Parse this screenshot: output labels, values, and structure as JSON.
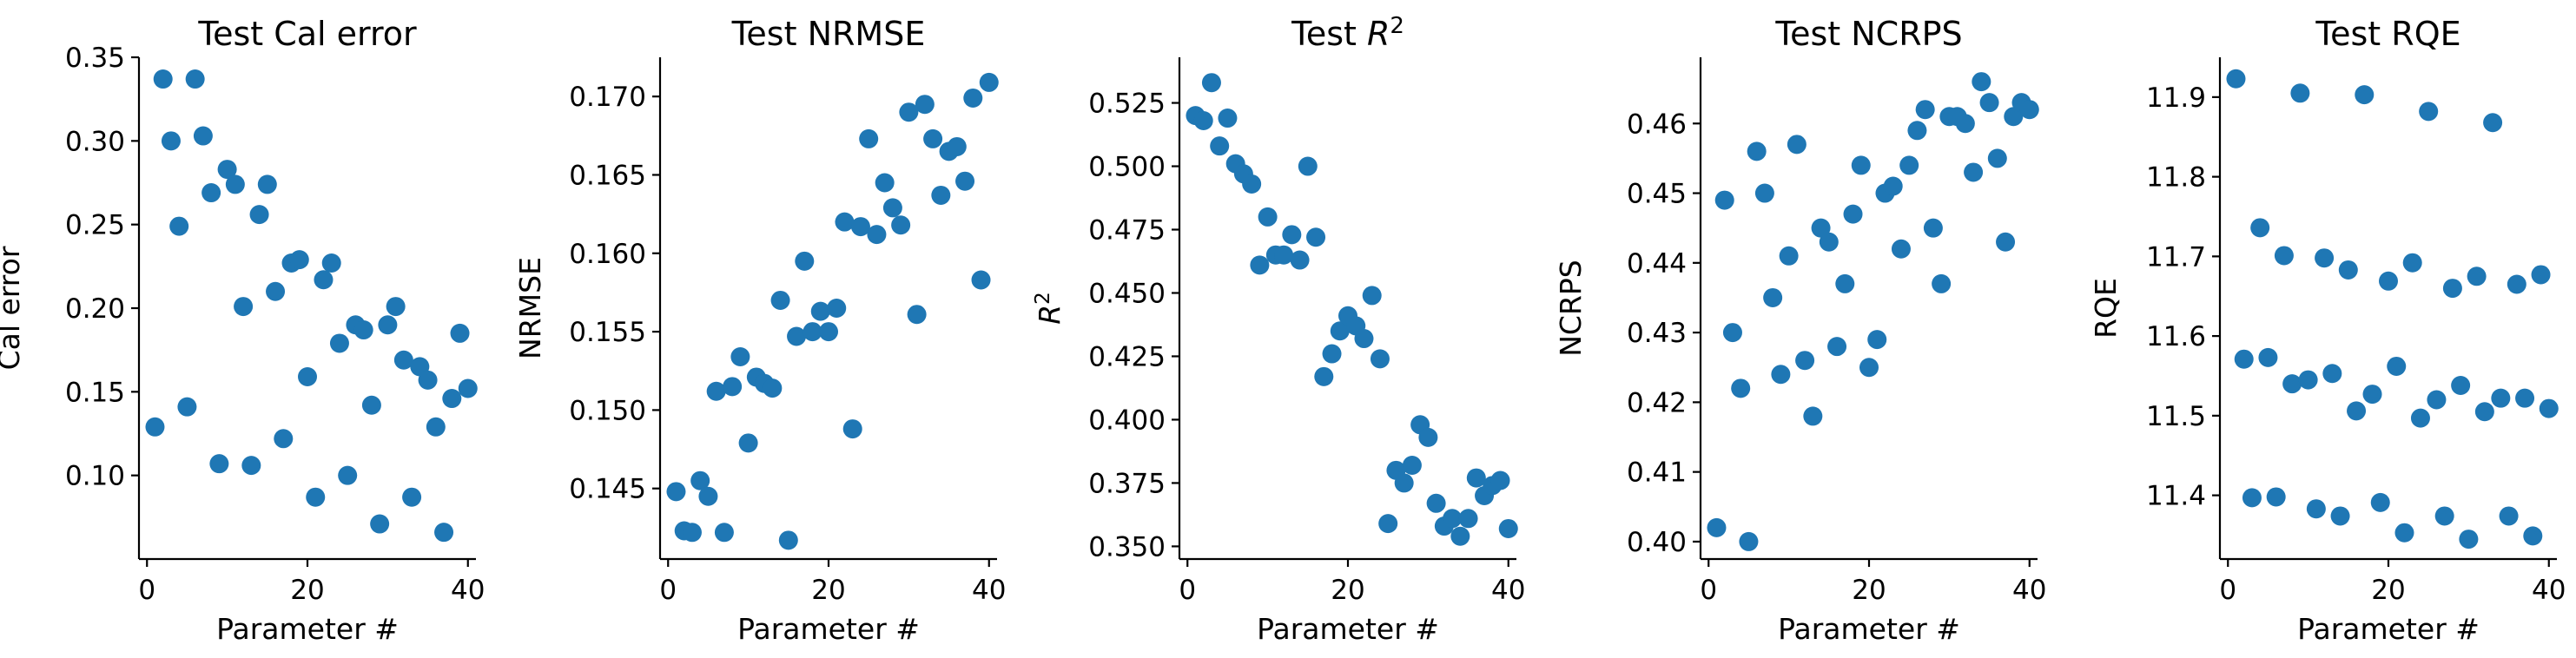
{
  "chart_data": [
    {
      "type": "scatter",
      "title": "Test Cal error",
      "xlabel": "Parameter #",
      "ylabel": "Cal error",
      "xlim": [
        -1,
        41
      ],
      "ylim": [
        0.05,
        0.35
      ],
      "xticks": [
        0,
        20,
        40
      ],
      "yticks": [
        0.1,
        0.15,
        0.2,
        0.25,
        0.3,
        0.35
      ],
      "ytick_labels": [
        "0.10",
        "0.15",
        "0.20",
        "0.25",
        "0.30",
        "0.35"
      ],
      "color": "#1f77b4",
      "x": [
        1,
        2,
        3,
        4,
        5,
        6,
        7,
        8,
        9,
        10,
        11,
        12,
        13,
        14,
        15,
        16,
        17,
        18,
        19,
        20,
        21,
        22,
        23,
        24,
        25,
        26,
        27,
        28,
        29,
        30,
        31,
        32,
        33,
        34,
        35,
        36,
        37,
        38,
        39,
        40
      ],
      "y": [
        0.129,
        0.337,
        0.3,
        0.249,
        0.141,
        0.337,
        0.303,
        0.269,
        0.107,
        0.283,
        0.274,
        0.201,
        0.106,
        0.256,
        0.274,
        0.21,
        0.122,
        0.227,
        0.229,
        0.159,
        0.087,
        0.217,
        0.227,
        0.179,
        0.1,
        0.19,
        0.187,
        0.142,
        0.071,
        0.19,
        0.201,
        0.169,
        0.087,
        0.165,
        0.157,
        0.129,
        0.066,
        0.146,
        0.185,
        0.152
      ]
    },
    {
      "type": "scatter",
      "title": "Test NRMSE",
      "xlabel": "Parameter #",
      "ylabel": "NRMSE",
      "xlim": [
        -1,
        41
      ],
      "ylim": [
        0.1405,
        0.1725
      ],
      "xticks": [
        0,
        20,
        40
      ],
      "yticks": [
        0.145,
        0.15,
        0.155,
        0.16,
        0.165,
        0.17
      ],
      "ytick_labels": [
        "0.145",
        "0.150",
        "0.155",
        "0.160",
        "0.165",
        "0.170"
      ],
      "color": "#1f77b4",
      "x": [
        1,
        2,
        3,
        4,
        5,
        6,
        7,
        8,
        9,
        10,
        11,
        12,
        13,
        14,
        15,
        16,
        17,
        18,
        19,
        20,
        21,
        22,
        23,
        24,
        25,
        26,
        27,
        28,
        29,
        30,
        31,
        32,
        33,
        34,
        35,
        36,
        37,
        38,
        39,
        40
      ],
      "y": [
        0.1448,
        0.1423,
        0.1422,
        0.1455,
        0.1445,
        0.1512,
        0.1422,
        0.1515,
        0.1534,
        0.1479,
        0.1521,
        0.1517,
        0.1514,
        0.157,
        0.1417,
        0.1547,
        0.1595,
        0.155,
        0.1563,
        0.155,
        0.1565,
        0.162,
        0.1488,
        0.1617,
        0.1673,
        0.1612,
        0.1645,
        0.1629,
        0.1618,
        0.169,
        0.1561,
        0.1695,
        0.1673,
        0.1637,
        0.1665,
        0.1668,
        0.1646,
        0.1699,
        0.1583,
        0.1709
      ]
    },
    {
      "type": "scatter",
      "title": "Test R²",
      "title_base": "Test ",
      "title_sym": "R",
      "title_sup": "2",
      "xlabel": "Parameter #",
      "ylabel_sym": "R",
      "ylabel_sup": "2",
      "xlim": [
        -1,
        41
      ],
      "ylim": [
        0.345,
        0.543
      ],
      "xticks": [
        0,
        20,
        40
      ],
      "yticks": [
        0.35,
        0.375,
        0.4,
        0.425,
        0.45,
        0.475,
        0.5,
        0.525
      ],
      "ytick_labels": [
        "0.350",
        "0.375",
        "0.400",
        "0.425",
        "0.450",
        "0.475",
        "0.500",
        "0.525"
      ],
      "color": "#1f77b4",
      "x": [
        1,
        2,
        3,
        4,
        5,
        6,
        7,
        8,
        9,
        10,
        11,
        12,
        13,
        14,
        15,
        16,
        17,
        18,
        19,
        20,
        21,
        22,
        23,
        24,
        25,
        26,
        27,
        28,
        29,
        30,
        31,
        32,
        33,
        34,
        35,
        36,
        37,
        38,
        39,
        40
      ],
      "y": [
        0.52,
        0.518,
        0.533,
        0.508,
        0.519,
        0.501,
        0.497,
        0.493,
        0.461,
        0.48,
        0.465,
        0.465,
        0.473,
        0.463,
        0.5,
        0.472,
        0.417,
        0.426,
        0.435,
        0.441,
        0.437,
        0.432,
        0.449,
        0.424,
        0.359,
        0.38,
        0.375,
        0.382,
        0.398,
        0.393,
        0.367,
        0.358,
        0.361,
        0.354,
        0.361,
        0.377,
        0.37,
        0.374,
        0.376,
        0.357
      ]
    },
    {
      "type": "scatter",
      "title": "Test NCRPS",
      "xlabel": "Parameter #",
      "ylabel": "NCRPS",
      "xlim": [
        -1,
        41
      ],
      "ylim": [
        0.3975,
        0.4695
      ],
      "xticks": [
        0,
        20,
        40
      ],
      "yticks": [
        0.4,
        0.41,
        0.42,
        0.43,
        0.44,
        0.45,
        0.46
      ],
      "ytick_labels": [
        "0.40",
        "0.41",
        "0.42",
        "0.43",
        "0.44",
        "0.45",
        "0.46"
      ],
      "color": "#1f77b4",
      "x": [
        1,
        2,
        3,
        4,
        5,
        6,
        7,
        8,
        9,
        10,
        11,
        12,
        13,
        14,
        15,
        16,
        17,
        18,
        19,
        20,
        21,
        22,
        23,
        24,
        25,
        26,
        27,
        28,
        29,
        30,
        31,
        32,
        33,
        34,
        35,
        36,
        37,
        38,
        39,
        40
      ],
      "y": [
        0.402,
        0.449,
        0.43,
        0.422,
        0.4,
        0.456,
        0.45,
        0.435,
        0.424,
        0.441,
        0.457,
        0.426,
        0.418,
        0.445,
        0.443,
        0.428,
        0.437,
        0.447,
        0.454,
        0.425,
        0.429,
        0.45,
        0.451,
        0.442,
        0.454,
        0.459,
        0.462,
        0.445,
        0.437,
        0.461,
        0.461,
        0.46,
        0.453,
        0.466,
        0.463,
        0.455,
        0.443,
        0.461,
        0.463,
        0.462
      ]
    },
    {
      "type": "scatter",
      "title": "Test RQE",
      "xlabel": "Parameter #",
      "ylabel": "RQE",
      "xlim": [
        -1,
        41
      ],
      "ylim": [
        11.32,
        11.95
      ],
      "xticks": [
        0,
        20,
        40
      ],
      "yticks": [
        11.4,
        11.5,
        11.6,
        11.7,
        11.8,
        11.9
      ],
      "ytick_labels": [
        "11.4",
        "11.5",
        "11.6",
        "11.7",
        "11.8",
        "11.9"
      ],
      "color": "#1f77b4",
      "x": [
        1,
        2,
        3,
        4,
        5,
        6,
        7,
        8,
        9,
        10,
        11,
        12,
        13,
        14,
        15,
        16,
        17,
        18,
        19,
        20,
        21,
        22,
        23,
        24,
        25,
        26,
        27,
        28,
        29,
        30,
        31,
        32,
        33,
        34,
        35,
        36,
        37,
        38,
        39,
        40
      ],
      "y": [
        11.923,
        11.571,
        11.397,
        11.736,
        11.573,
        11.398,
        11.701,
        11.54,
        11.905,
        11.545,
        11.383,
        11.698,
        11.553,
        11.374,
        11.683,
        11.506,
        11.903,
        11.527,
        11.391,
        11.669,
        11.562,
        11.353,
        11.692,
        11.497,
        11.882,
        11.52,
        11.374,
        11.66,
        11.538,
        11.345,
        11.675,
        11.505,
        11.868,
        11.522,
        11.374,
        11.665,
        11.522,
        11.349,
        11.677,
        11.509
      ]
    }
  ]
}
